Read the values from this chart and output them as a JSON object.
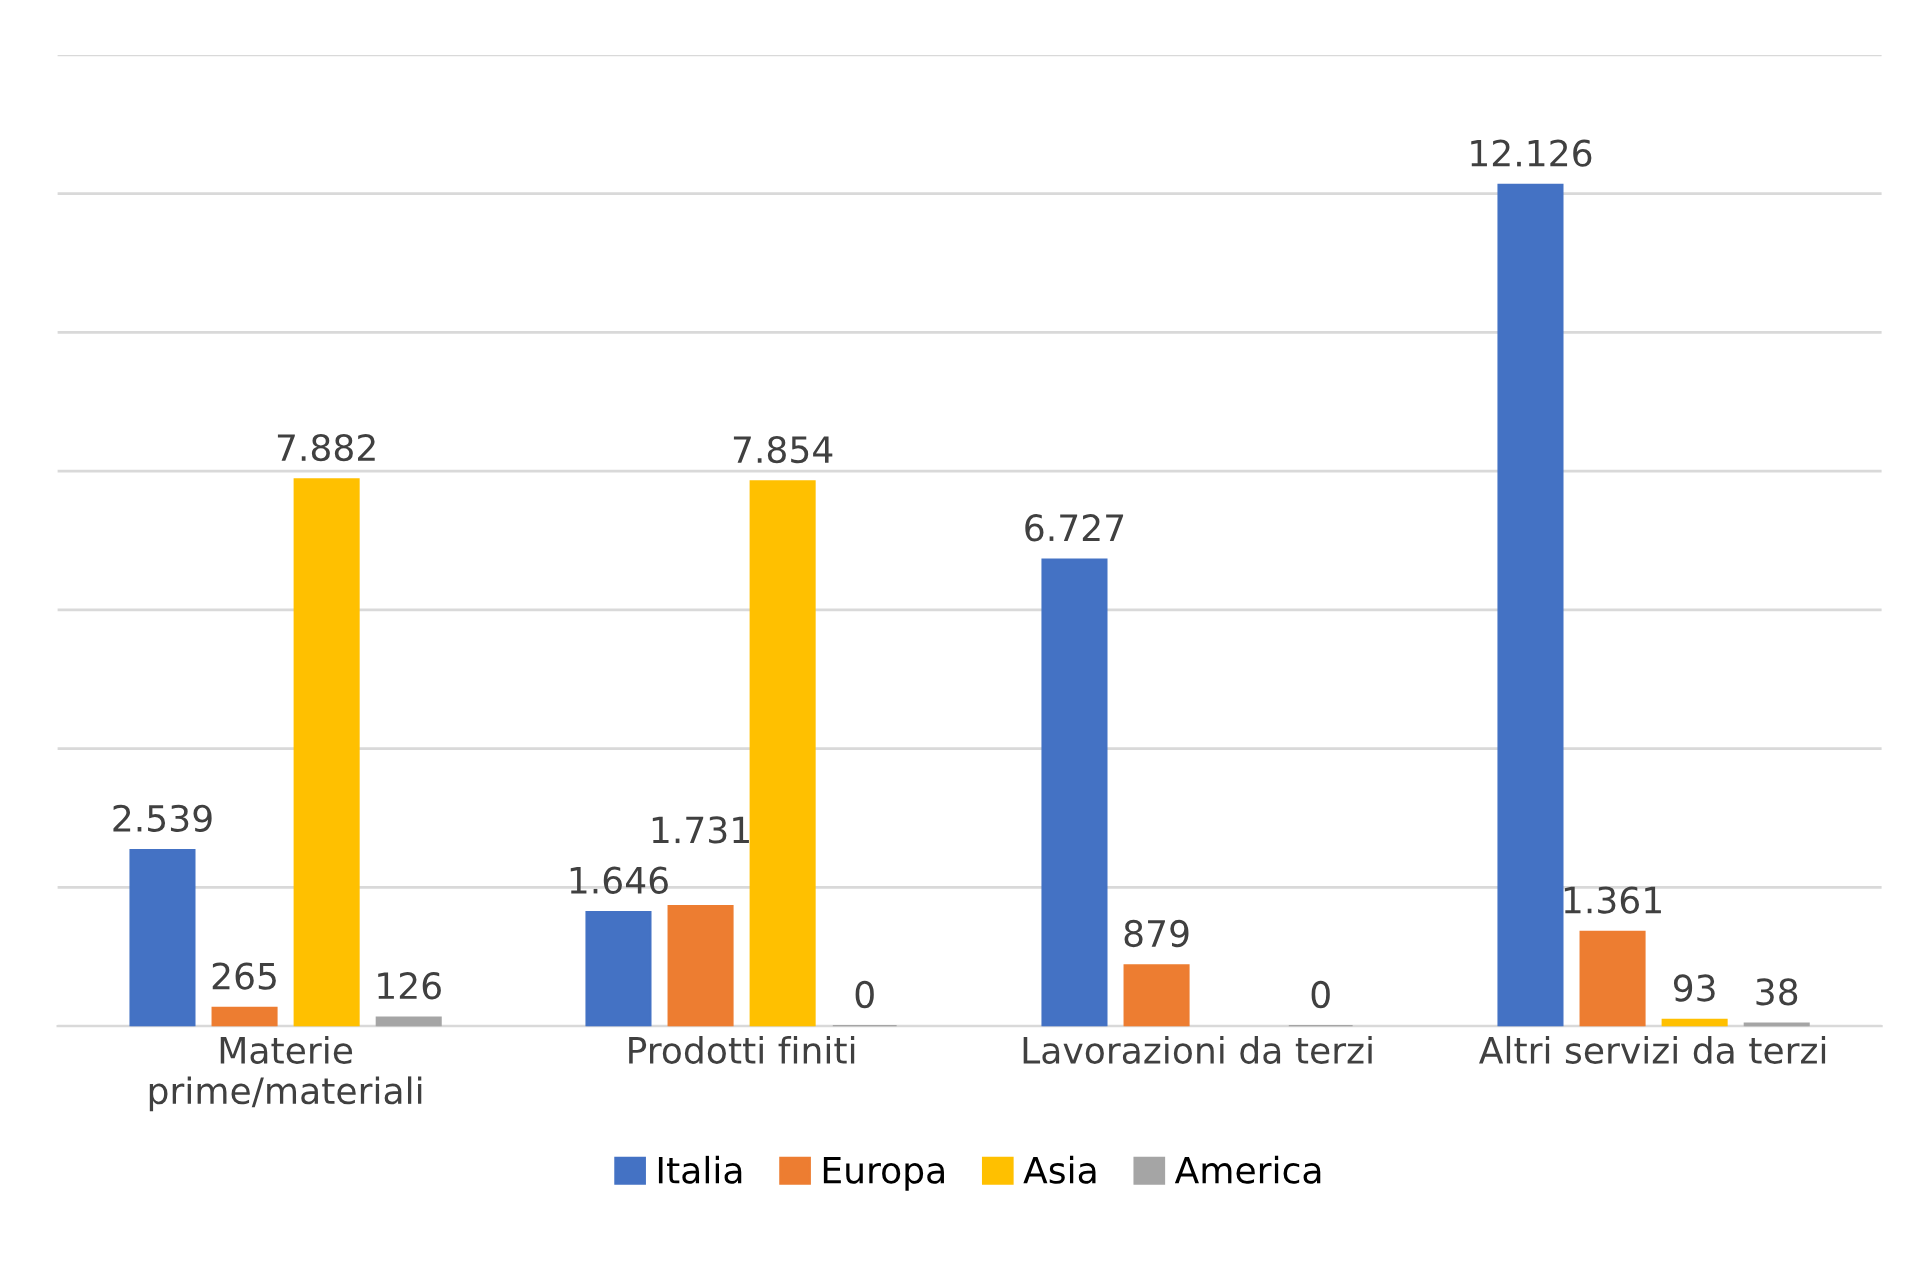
{
  "chart_data": {
    "type": "bar",
    "categories": [
      "Materie\nprime/materiali",
      "Prodotti finiti",
      "Lavorazioni da terzi",
      "Altri servizi da terzi"
    ],
    "series": [
      {
        "name": "Italia",
        "color": "#4472c4",
        "values": [
          2539,
          1646,
          6727,
          12126
        ],
        "value_labels": [
          "2.539",
          "1.646",
          "6.727",
          "12.126"
        ]
      },
      {
        "name": "Europa",
        "color": "#ed7d31",
        "values": [
          265,
          1731,
          879,
          1361
        ],
        "value_labels": [
          "265",
          "1.731",
          "879",
          "1.361"
        ]
      },
      {
        "name": "Asia",
        "color": "#ffc000",
        "values": [
          7882,
          7854,
          null,
          93
        ],
        "value_labels": [
          "7.882",
          "7.854",
          null,
          "93"
        ]
      },
      {
        "name": "America",
        "color": "#a5a5a5",
        "values": [
          126,
          0,
          0,
          38
        ],
        "value_labels": [
          "126",
          "0",
          "0",
          "38"
        ]
      }
    ],
    "ylim": [
      0,
      14000
    ],
    "yticks": [
      {
        "value": 0,
        "label": null
      },
      {
        "value": 2000,
        "label": null
      },
      {
        "value": 4000,
        "label": null
      },
      {
        "value": 6000,
        "label": null
      },
      {
        "value": 8000,
        "label": null
      },
      {
        "value": 10000,
        "label": null
      },
      {
        "value": 12000,
        "label": null
      },
      {
        "value": 14000,
        "label": null
      }
    ],
    "tick_labels": "x",
    "grid": "y",
    "legend": "bottom"
  }
}
